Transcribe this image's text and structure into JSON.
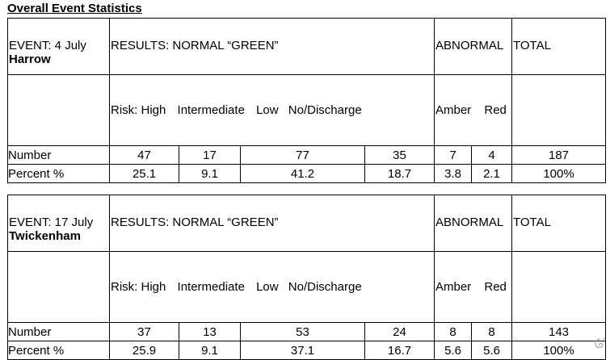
{
  "title": "Overall Event Statistics",
  "events": [
    {
      "event_label": "EVENT: 4 July",
      "venue": "Harrow",
      "results_label": "RESULTS:  NORMAL “GREEN”",
      "abnormal_label": "ABNORMAL",
      "total_label": "TOTAL",
      "risk_levels": [
        "Risk: High",
        "Intermediate",
        "Low",
        "No/Discharge"
      ],
      "abnormal_levels": [
        "Amber",
        "Red"
      ],
      "number_label": "Number",
      "percent_label": "Percent %",
      "numbers": [
        "47",
        "17",
        "77",
        "35",
        "7",
        "4",
        "187"
      ],
      "percents": [
        "25.1",
        "9.1",
        "41.2",
        "18.7",
        "3.8",
        "2.1",
        "100%"
      ]
    },
    {
      "event_label": "EVENT: 17 July",
      "venue": "Twickenham",
      "results_label": "RESULTS:  NORMAL “GREEN”",
      "abnormal_label": "ABNORMAL",
      "total_label": "TOTAL",
      "risk_levels": [
        "Risk: High",
        "Intermediate",
        "Low",
        "No/Discharge"
      ],
      "abnormal_levels": [
        "Amber",
        "Red"
      ],
      "number_label": "Number",
      "percent_label": "Percent %",
      "numbers": [
        "37",
        "13",
        "53",
        "24",
        "8",
        "8",
        "143"
      ],
      "percents": [
        "25.9",
        "9.1",
        "37.1",
        "16.7",
        "5.6",
        "5.6",
        "100%"
      ]
    }
  ]
}
